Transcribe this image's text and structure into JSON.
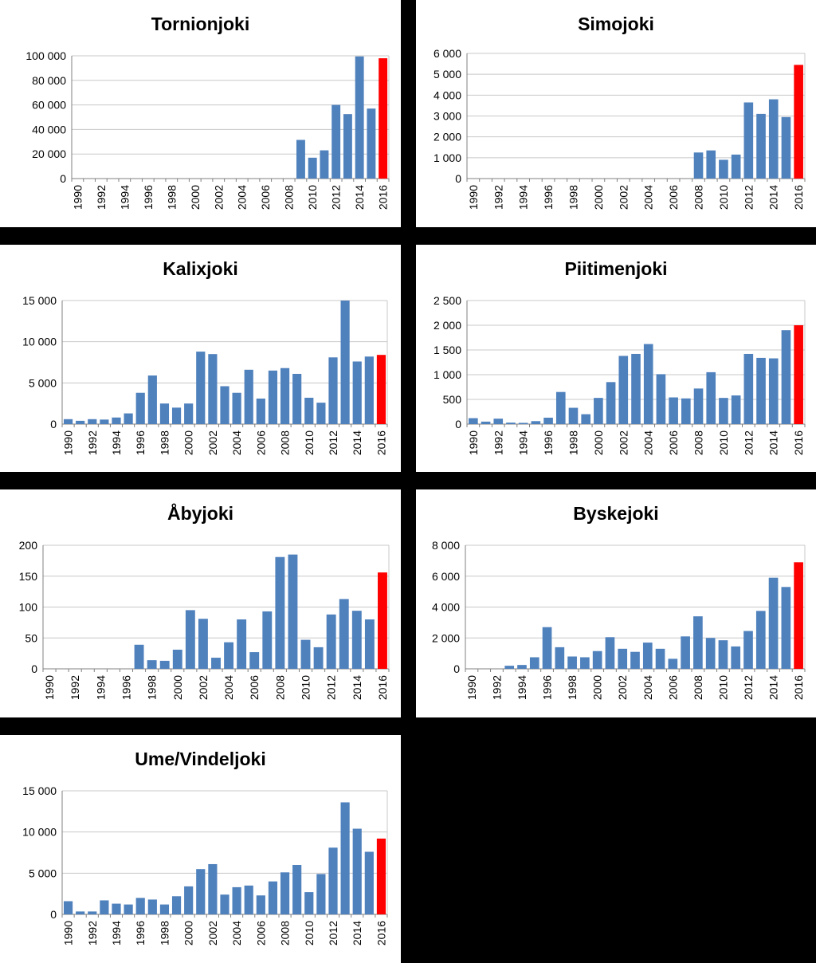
{
  "colors": {
    "bar": "#4F81BD",
    "highlight": "#FF0000",
    "grid": "#C8C8C8",
    "axis": "#808080",
    "text": "#000000",
    "background": "#000000",
    "panel": "#FFFFFF"
  },
  "chart_data": [
    {
      "type": "bar",
      "title": "Tornionjoki",
      "categories": [
        "1990",
        "1991",
        "1992",
        "1993",
        "1994",
        "1995",
        "1996",
        "1997",
        "1998",
        "1999",
        "2000",
        "2001",
        "2002",
        "2003",
        "2004",
        "2005",
        "2006",
        "2007",
        "2008",
        "2009",
        "2010",
        "2011",
        "2012",
        "2013",
        "2014",
        "2015",
        "2016"
      ],
      "tick_labels": [
        "1990",
        "",
        "1992",
        "",
        "1994",
        "",
        "1996",
        "",
        "1998",
        "",
        "2000",
        "",
        "2002",
        "",
        "2004",
        "",
        "2006",
        "",
        "2008",
        "",
        "2010",
        "",
        "2012",
        "",
        "2014",
        "",
        "2016"
      ],
      "values": [
        0,
        0,
        0,
        0,
        0,
        0,
        0,
        0,
        0,
        0,
        0,
        0,
        0,
        0,
        0,
        0,
        0,
        0,
        0,
        31500,
        17000,
        23000,
        60000,
        52500,
        99500,
        57000,
        98000
      ],
      "highlight_last": true,
      "ylim": [
        0,
        100000
      ],
      "yticks": [
        0,
        20000,
        40000,
        60000,
        80000,
        100000
      ],
      "ytick_labels": [
        "0",
        "20 000",
        "40 000",
        "60 000",
        "80 000",
        "100 000"
      ],
      "grid": true,
      "xlabel": "",
      "ylabel": ""
    },
    {
      "type": "bar",
      "title": "Simojoki",
      "categories": [
        "1990",
        "1991",
        "1992",
        "1993",
        "1994",
        "1995",
        "1996",
        "1997",
        "1998",
        "1999",
        "2000",
        "2001",
        "2002",
        "2003",
        "2004",
        "2005",
        "2006",
        "2007",
        "2008",
        "2009",
        "2010",
        "2011",
        "2012",
        "2013",
        "2014",
        "2015",
        "2016"
      ],
      "tick_labels": [
        "1990",
        "",
        "1992",
        "",
        "1994",
        "",
        "1996",
        "",
        "1998",
        "",
        "2000",
        "",
        "2002",
        "",
        "2004",
        "",
        "2006",
        "",
        "2008",
        "",
        "2010",
        "",
        "2012",
        "",
        "2014",
        "",
        "2016"
      ],
      "values": [
        0,
        0,
        0,
        0,
        0,
        0,
        0,
        0,
        0,
        0,
        0,
        0,
        0,
        0,
        0,
        0,
        0,
        0,
        1250,
        1350,
        900,
        1150,
        3650,
        3100,
        3800,
        2950,
        5450
      ],
      "highlight_last": true,
      "ylim": [
        0,
        6000
      ],
      "yticks": [
        0,
        1000,
        2000,
        3000,
        4000,
        5000,
        6000
      ],
      "ytick_labels": [
        "0",
        "1 000",
        "2 000",
        "3 000",
        "4 000",
        "5 000",
        "6 000"
      ],
      "grid": true,
      "xlabel": "",
      "ylabel": ""
    },
    {
      "type": "bar",
      "title": "Kalixjoki",
      "categories": [
        "1990",
        "1991",
        "1992",
        "1993",
        "1994",
        "1995",
        "1996",
        "1997",
        "1998",
        "1999",
        "2000",
        "2001",
        "2002",
        "2003",
        "2004",
        "2005",
        "2006",
        "2007",
        "2008",
        "2009",
        "2010",
        "2011",
        "2012",
        "2013",
        "2014",
        "2015",
        "2016"
      ],
      "tick_labels": [
        "1990",
        "",
        "1992",
        "",
        "1994",
        "",
        "1996",
        "",
        "1998",
        "",
        "2000",
        "",
        "2002",
        "",
        "2004",
        "",
        "2006",
        "",
        "2008",
        "",
        "2010",
        "",
        "2012",
        "",
        "2014",
        "",
        "2016"
      ],
      "values": [
        600,
        400,
        600,
        550,
        800,
        1300,
        3800,
        5900,
        2500,
        2000,
        2500,
        8800,
        8500,
        4600,
        3800,
        6600,
        3100,
        6500,
        6800,
        6100,
        3200,
        2600,
        8100,
        15000,
        7600,
        8200,
        8400
      ],
      "highlight_last": true,
      "ylim": [
        0,
        15000
      ],
      "yticks": [
        0,
        5000,
        10000,
        15000
      ],
      "ytick_labels": [
        "0",
        "5 000",
        "10 000",
        "15 000"
      ],
      "grid": true,
      "xlabel": "",
      "ylabel": ""
    },
    {
      "type": "bar",
      "title": "Piitimenjoki",
      "categories": [
        "1990",
        "1991",
        "1992",
        "1993",
        "1994",
        "1995",
        "1996",
        "1997",
        "1998",
        "1999",
        "2000",
        "2001",
        "2002",
        "2003",
        "2004",
        "2005",
        "2006",
        "2007",
        "2008",
        "2009",
        "2010",
        "2011",
        "2012",
        "2013",
        "2014",
        "2015",
        "2016"
      ],
      "tick_labels": [
        "1990",
        "",
        "1992",
        "",
        "1994",
        "",
        "1996",
        "",
        "1998",
        "",
        "2000",
        "",
        "2002",
        "",
        "2004",
        "",
        "2006",
        "",
        "2008",
        "",
        "2010",
        "",
        "2012",
        "",
        "2014",
        "",
        "2016"
      ],
      "values": [
        120,
        50,
        110,
        30,
        25,
        60,
        130,
        650,
        330,
        200,
        530,
        850,
        1380,
        1420,
        1620,
        1010,
        540,
        520,
        720,
        1050,
        530,
        580,
        1420,
        1340,
        1330,
        1900,
        2000
      ],
      "highlight_last": true,
      "ylim": [
        0,
        2500
      ],
      "yticks": [
        0,
        500,
        1000,
        1500,
        2000,
        2500
      ],
      "ytick_labels": [
        "0",
        "500",
        "1 000",
        "1 500",
        "2 000",
        "2 500"
      ],
      "grid": true,
      "xlabel": "",
      "ylabel": ""
    },
    {
      "type": "bar",
      "title": "Åbyjoki",
      "categories": [
        "1990",
        "1991",
        "1992",
        "1993",
        "1994",
        "1995",
        "1996",
        "1997",
        "1998",
        "1999",
        "2000",
        "2001",
        "2002",
        "2003",
        "2004",
        "2005",
        "2006",
        "2007",
        "2008",
        "2009",
        "2010",
        "2011",
        "2012",
        "2013",
        "2014",
        "2015",
        "2016"
      ],
      "tick_labels": [
        "1990",
        "",
        "1992",
        "",
        "1994",
        "",
        "1996",
        "",
        "1998",
        "",
        "2000",
        "",
        "2002",
        "",
        "2004",
        "",
        "2006",
        "",
        "2008",
        "",
        "2010",
        "",
        "2012",
        "",
        "2014",
        "",
        "2016"
      ],
      "values": [
        0,
        0,
        0,
        0,
        0,
        0,
        0,
        39,
        14,
        13,
        31,
        95,
        81,
        18,
        43,
        80,
        27,
        93,
        181,
        185,
        47,
        35,
        88,
        113,
        94,
        80,
        156
      ],
      "highlight_last": true,
      "ylim": [
        0,
        200
      ],
      "yticks": [
        0,
        50,
        100,
        150,
        200
      ],
      "ytick_labels": [
        "0",
        "50",
        "100",
        "150",
        "200"
      ],
      "grid": true,
      "xlabel": "",
      "ylabel": ""
    },
    {
      "type": "bar",
      "title": "Byskejoki",
      "categories": [
        "1990",
        "1991",
        "1992",
        "1993",
        "1994",
        "1995",
        "1996",
        "1997",
        "1998",
        "1999",
        "2000",
        "2001",
        "2002",
        "2003",
        "2004",
        "2005",
        "2006",
        "2007",
        "2008",
        "2009",
        "2010",
        "2011",
        "2012",
        "2013",
        "2014",
        "2015",
        "2016"
      ],
      "tick_labels": [
        "1990",
        "",
        "1992",
        "",
        "1994",
        "",
        "1996",
        "",
        "1998",
        "",
        "2000",
        "",
        "2002",
        "",
        "2004",
        "",
        "2006",
        "",
        "2008",
        "",
        "2010",
        "",
        "2012",
        "",
        "2014",
        "",
        "2016"
      ],
      "values": [
        0,
        0,
        0,
        200,
        250,
        750,
        2700,
        1400,
        800,
        750,
        1150,
        2050,
        1300,
        1100,
        1700,
        1300,
        650,
        2100,
        3400,
        2000,
        1850,
        1450,
        2450,
        3750,
        5900,
        5300,
        6900
      ],
      "highlight_last": true,
      "ylim": [
        0,
        8000
      ],
      "yticks": [
        0,
        2000,
        4000,
        6000,
        8000
      ],
      "ytick_labels": [
        "0",
        "2 000",
        "4 000",
        "6 000",
        "8 000"
      ],
      "grid": true,
      "xlabel": "",
      "ylabel": ""
    },
    {
      "type": "bar",
      "title": "Ume/Vindeljoki",
      "categories": [
        "1990",
        "1991",
        "1992",
        "1993",
        "1994",
        "1995",
        "1996",
        "1997",
        "1998",
        "1999",
        "2000",
        "2001",
        "2002",
        "2003",
        "2004",
        "2005",
        "2006",
        "2007",
        "2008",
        "2009",
        "2010",
        "2011",
        "2012",
        "2013",
        "2014",
        "2015",
        "2016"
      ],
      "tick_labels": [
        "1990",
        "",
        "1992",
        "",
        "1994",
        "",
        "1996",
        "",
        "1998",
        "",
        "2000",
        "",
        "2002",
        "",
        "2004",
        "",
        "2006",
        "",
        "2008",
        "",
        "2010",
        "",
        "2012",
        "",
        "2014",
        "",
        "2016"
      ],
      "values": [
        1600,
        350,
        350,
        1700,
        1300,
        1200,
        2000,
        1800,
        1200,
        2200,
        3400,
        5500,
        6100,
        2400,
        3300,
        3500,
        2300,
        4000,
        5100,
        6000,
        2700,
        4900,
        8100,
        13600,
        10400,
        7600,
        9200
      ],
      "highlight_last": true,
      "ylim": [
        0,
        15000
      ],
      "yticks": [
        0,
        5000,
        10000,
        15000
      ],
      "ytick_labels": [
        "0",
        "5 000",
        "10 000",
        "15 000"
      ],
      "grid": true,
      "xlabel": "",
      "ylabel": ""
    }
  ]
}
